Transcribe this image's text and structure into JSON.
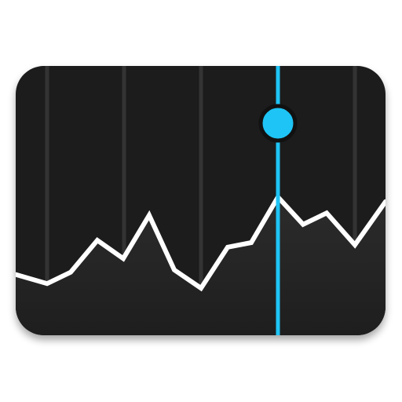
{
  "app_icon": {
    "name": "stocks-chart-app-icon",
    "colors": {
      "panel_background": "#1b1b1b",
      "gridline": "#333333",
      "line": "#ffffff",
      "area_fill": "#2a2a2a",
      "highlight": "#1ec4f5",
      "marker_outline": "#111111",
      "shadow": "#000000"
    },
    "line_series": [
      0.26,
      0.22,
      0.27,
      0.41,
      0.33,
      0.52,
      0.28,
      0.2,
      0.38,
      0.4,
      0.6,
      0.48,
      0.53,
      0.39,
      0.58
    ],
    "highlight_index": 10
  }
}
